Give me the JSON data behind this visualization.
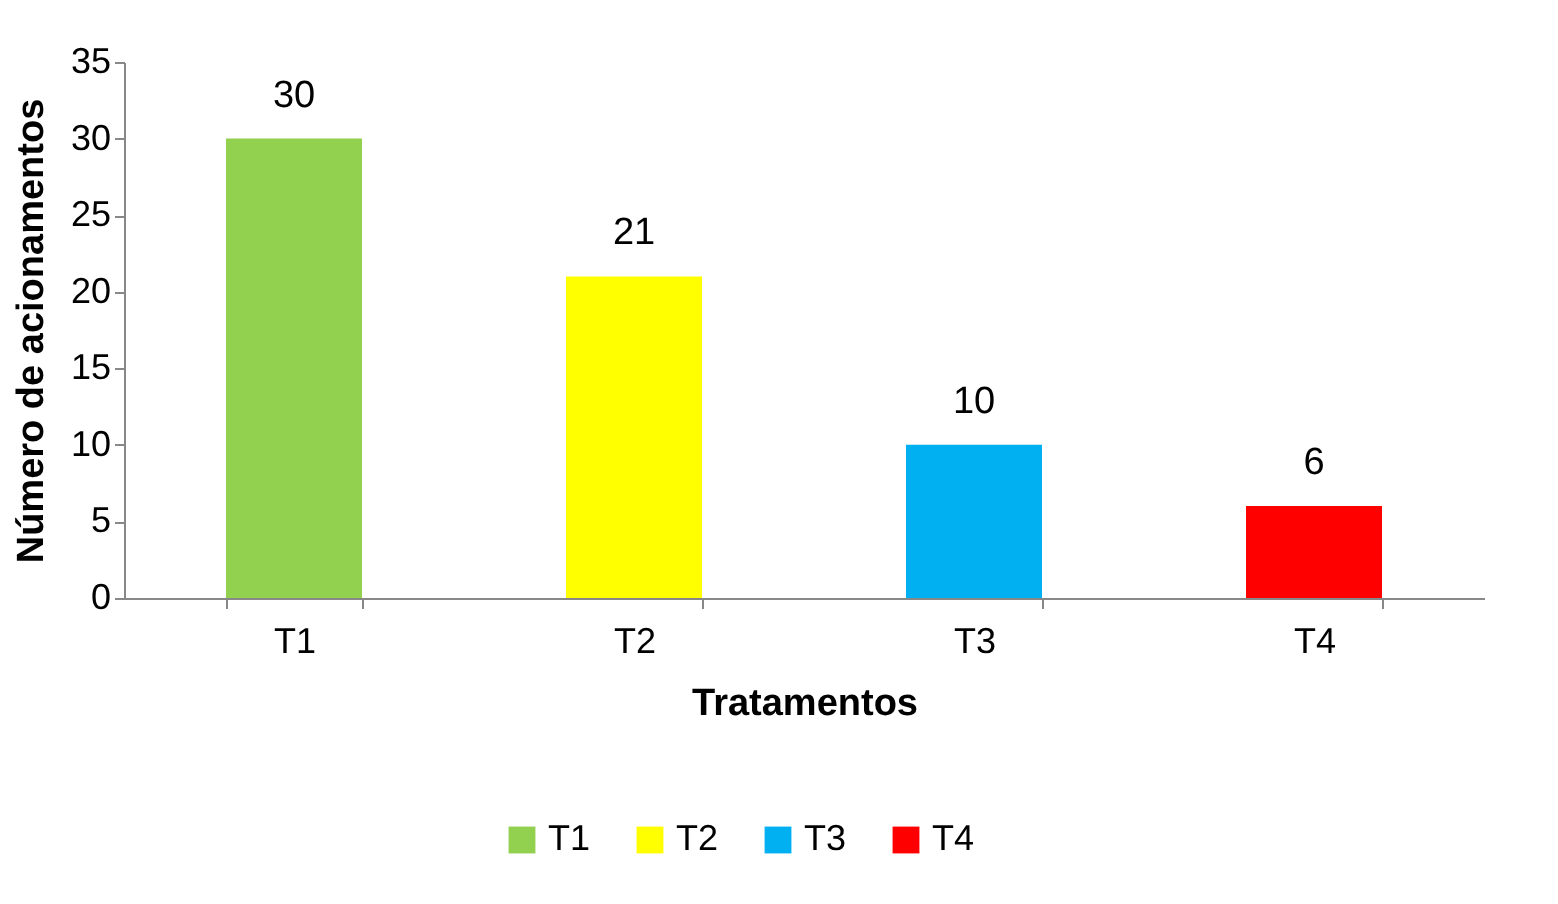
{
  "chart_data": {
    "type": "bar",
    "xlabel": "Tratamentos",
    "ylabel": "Número  de acionamentos",
    "categories": [
      "T1",
      "T2",
      "T3",
      "T4"
    ],
    "series": [
      {
        "name": "T1",
        "color": "#92d050",
        "values": [
          30,
          null,
          null,
          null
        ]
      },
      {
        "name": "T2",
        "color": "#ffff00",
        "values": [
          null,
          21,
          null,
          null
        ]
      },
      {
        "name": "T3",
        "color": "#00b0f0",
        "values": [
          null,
          null,
          10,
          null
        ]
      },
      {
        "name": "T4",
        "color": "#ff0000",
        "values": [
          null,
          null,
          null,
          6
        ]
      }
    ],
    "ylim": [
      0,
      35
    ],
    "yticks": [
      0,
      5,
      10,
      15,
      20,
      25,
      30,
      35
    ],
    "grid": false,
    "legend": "bottom",
    "data_labels": true
  }
}
